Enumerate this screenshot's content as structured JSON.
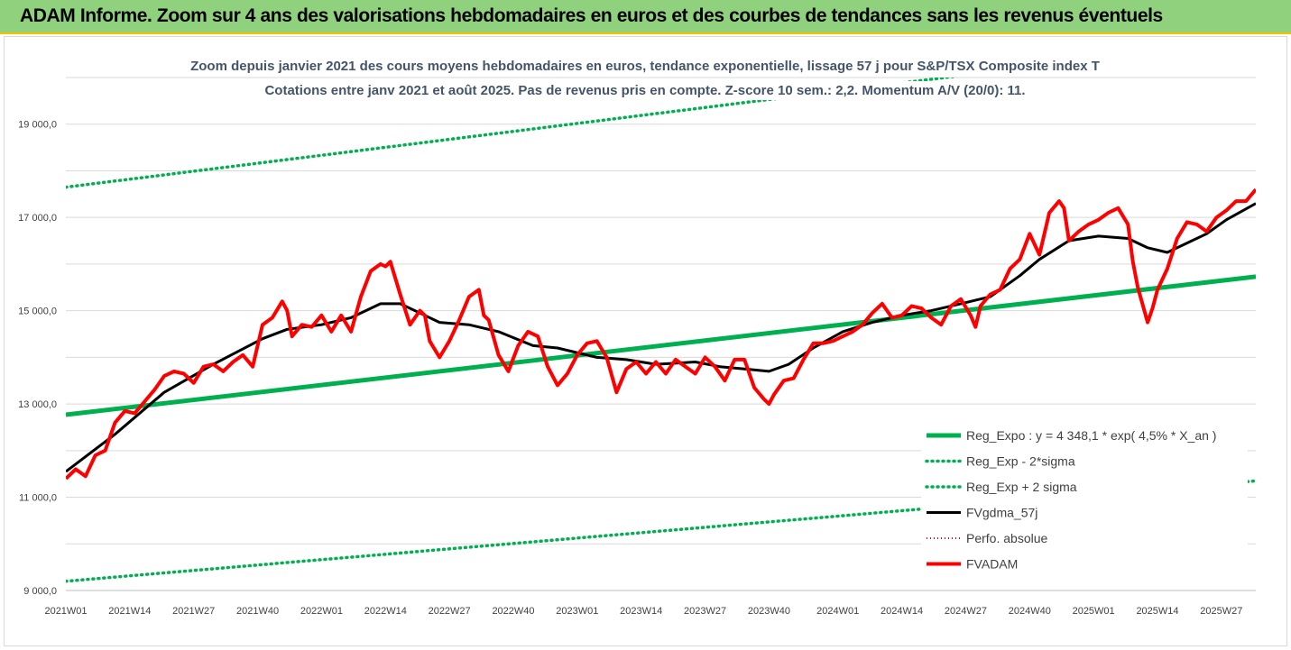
{
  "header": {
    "title": "ADAM Informe. Zoom sur 4 ans des valorisations hebdomadaires en euros et des courbes de tendances sans les revenus éventuels"
  },
  "colors": {
    "header_bg": "#8fd17c",
    "header_border": "#f2c200",
    "green": "#00b050",
    "red": "#ff0000",
    "black": "#000000",
    "grid": "#d9d9d9"
  },
  "chart_data": {
    "type": "line",
    "title": "Zoom depuis janvier 2021 des cours moyens hebdomadaires en euros, tendance exponentielle, lissage 57 j pour S&P/TSX Composite index T",
    "subtitle": "Cotations entre janv 2021 et août 2025. Pas de revenus pris en compte. Z-score 10 sem.: 2,2. Momentum A/V (20/0): 11.",
    "xlabel": "",
    "ylabel": "",
    "ylim": [
      9000,
      20000
    ],
    "grid": "horizontal",
    "legend_position": "bottom-right",
    "y_ticks": [
      {
        "value": 9000,
        "label": "9 000,0"
      },
      {
        "value": 11000,
        "label": "11 000,0"
      },
      {
        "value": 13000,
        "label": "13 000,0"
      },
      {
        "value": 15000,
        "label": "15 000,0"
      },
      {
        "value": 17000,
        "label": "17 000,0"
      },
      {
        "value": 19000,
        "label": "19 000,0"
      }
    ],
    "x_ticks": [
      {
        "week": 0,
        "label": "2021W01"
      },
      {
        "week": 13,
        "label": "2021W14"
      },
      {
        "week": 26,
        "label": "2021W27"
      },
      {
        "week": 39,
        "label": "2021W40"
      },
      {
        "week": 52,
        "label": "2022W01"
      },
      {
        "week": 65,
        "label": "2022W14"
      },
      {
        "week": 78,
        "label": "2022W27"
      },
      {
        "week": 91,
        "label": "2022W40"
      },
      {
        "week": 104,
        "label": "2023W01"
      },
      {
        "week": 117,
        "label": "2023W14"
      },
      {
        "week": 130,
        "label": "2023W27"
      },
      {
        "week": 143,
        "label": "2023W40"
      },
      {
        "week": 157,
        "label": "2024W01"
      },
      {
        "week": 170,
        "label": "2024W14"
      },
      {
        "week": 183,
        "label": "2024W27"
      },
      {
        "week": 196,
        "label": "2024W40"
      },
      {
        "week": 209,
        "label": "2025W01"
      },
      {
        "week": 222,
        "label": "2025W14"
      },
      {
        "week": 235,
        "label": "2025W27"
      }
    ],
    "x_range": [
      0,
      242
    ],
    "series": [
      {
        "name": "Reg_Expo : y = 4 348,1 * exp( 4,5% *  X_an )",
        "style": "solid-green-thick",
        "x": [
          0,
          242
        ],
        "values": [
          12770,
          15730
        ]
      },
      {
        "name": "Reg_Exp - 2*sigma",
        "style": "dotted-green",
        "x": [
          0,
          242
        ],
        "values": [
          17650,
          20830
        ]
      },
      {
        "name": "Reg_Exp + 2 sigma",
        "style": "dotted-green",
        "x": [
          0,
          242
        ],
        "values": [
          9200,
          11350
        ]
      },
      {
        "name": "FVgdma_57j",
        "style": "solid-black",
        "x": [
          0,
          10,
          20,
          30,
          40,
          45,
          52,
          58,
          64,
          68,
          72,
          76,
          82,
          88,
          95,
          100,
          108,
          114,
          120,
          128,
          133,
          138,
          143,
          147,
          152,
          158,
          164,
          170,
          176,
          182,
          188,
          194,
          198,
          204,
          210,
          216,
          220,
          224,
          228,
          232,
          236,
          242
        ],
        "values": [
          11550,
          12350,
          13250,
          13850,
          14400,
          14600,
          14700,
          14850,
          15150,
          15150,
          14950,
          14750,
          14700,
          14550,
          14250,
          14200,
          14000,
          13950,
          13850,
          13900,
          13800,
          13750,
          13700,
          13850,
          14200,
          14550,
          14750,
          14900,
          15000,
          15150,
          15300,
          15750,
          16100,
          16500,
          16600,
          16550,
          16350,
          16250,
          16450,
          16650,
          16950,
          17300
        ]
      },
      {
        "name": "Perfo. absolue",
        "style": "dotted-red",
        "x": [],
        "values": []
      },
      {
        "name": "FVADAM",
        "style": "solid-red-thick",
        "x": [
          0,
          2,
          4,
          6,
          8,
          10,
          12,
          14,
          16,
          18,
          20,
          22,
          24,
          26,
          28,
          30,
          32,
          34,
          36,
          38,
          40,
          42,
          44,
          45,
          46,
          48,
          50,
          52,
          54,
          56,
          58,
          60,
          62,
          64,
          65,
          66,
          68,
          70,
          72,
          73,
          74,
          76,
          78,
          80,
          82,
          84,
          85,
          86,
          88,
          90,
          92,
          94,
          96,
          98,
          100,
          102,
          104,
          106,
          108,
          110,
          112,
          114,
          116,
          118,
          120,
          122,
          124,
          126,
          128,
          130,
          132,
          134,
          136,
          138,
          140,
          142,
          143,
          144,
          146,
          148,
          150,
          152,
          154,
          156,
          158,
          160,
          162,
          164,
          166,
          168,
          170,
          172,
          174,
          176,
          178,
          180,
          182,
          184,
          185,
          186,
          188,
          190,
          192,
          194,
          196,
          198,
          200,
          202,
          203,
          204,
          206,
          208,
          210,
          212,
          214,
          216,
          217,
          218,
          220,
          221,
          222,
          224,
          226,
          228,
          230,
          232,
          234,
          236,
          238,
          240,
          242
        ],
        "values": [
          11400,
          11600,
          11450,
          11900,
          12000,
          12600,
          12850,
          12800,
          13050,
          13300,
          13600,
          13700,
          13650,
          13450,
          13800,
          13850,
          13700,
          13900,
          14050,
          13800,
          14700,
          14850,
          15200,
          15000,
          14450,
          14700,
          14650,
          14900,
          14550,
          14900,
          14550,
          15300,
          15850,
          16000,
          15950,
          16050,
          15350,
          14700,
          15000,
          14900,
          14350,
          14000,
          14350,
          14800,
          15300,
          15450,
          14900,
          14800,
          14050,
          13700,
          14250,
          14550,
          14450,
          13800,
          13400,
          13650,
          14050,
          14300,
          14350,
          14000,
          13250,
          13750,
          13900,
          13650,
          13900,
          13650,
          13950,
          13800,
          13650,
          14000,
          13800,
          13500,
          13950,
          13950,
          13350,
          13100,
          13000,
          13200,
          13500,
          13550,
          13950,
          14300,
          14300,
          14350,
          14450,
          14550,
          14700,
          14950,
          15150,
          14850,
          14900,
          15100,
          15050,
          14850,
          14700,
          15100,
          15250,
          14900,
          14650,
          15100,
          15350,
          15450,
          15900,
          16100,
          16650,
          16200,
          17100,
          17350,
          17200,
          16500,
          16700,
          16850,
          16950,
          17100,
          17200,
          16850,
          16050,
          15500,
          14750,
          15050,
          15450,
          15900,
          16550,
          16900,
          16850,
          16700,
          17000,
          17150,
          17350,
          17350,
          17600
        ]
      }
    ]
  }
}
